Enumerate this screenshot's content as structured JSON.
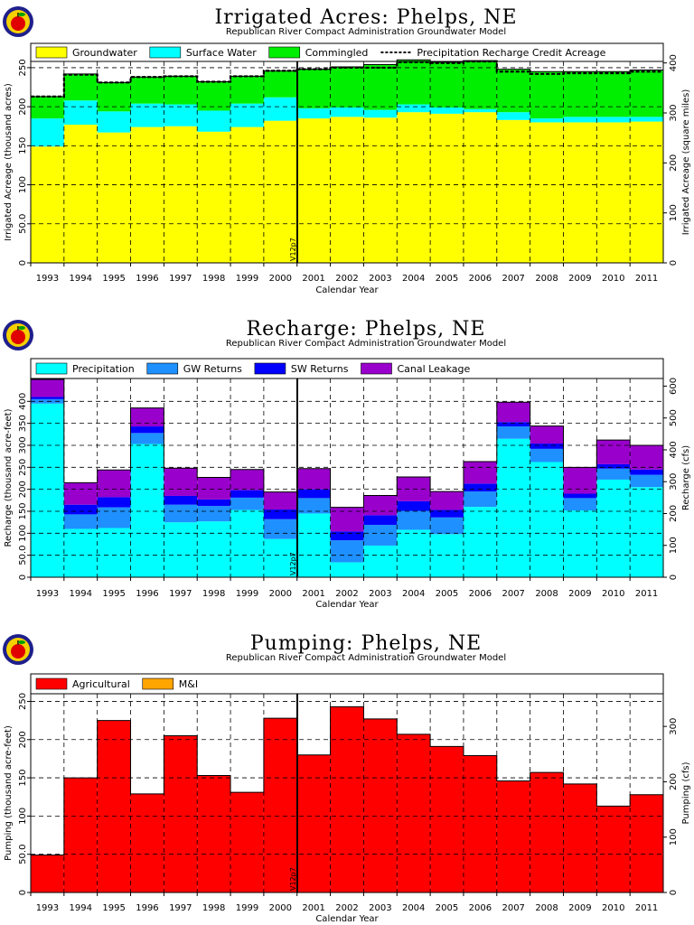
{
  "years": [
    "1993",
    "1994",
    "1995",
    "1996",
    "1997",
    "1998",
    "1999",
    "2000",
    "2001",
    "2002",
    "2003",
    "2004",
    "2005",
    "2006",
    "2007",
    "2008",
    "2009",
    "2010",
    "2011"
  ],
  "marker_label": "V12p7",
  "chart_data": [
    {
      "type": "bar",
      "stacked": true,
      "title": "Irrigated Acres: Phelps, NE",
      "subtitle": "Republican River Compact Administration Groundwater Model",
      "xlabel": "Calendar Year",
      "ylabel": "Irrigated Acreage (thousand acres)",
      "ylabel2": "Irrigated Acreage (square miles)",
      "ylim": [
        0,
        258
      ],
      "yticks": [
        0,
        50,
        100,
        150,
        200,
        250
      ],
      "yticks_labels": [
        "0",
        "50.0",
        "100",
        "150",
        "200",
        "250"
      ],
      "ylim2": [
        0,
        403
      ],
      "yticks2": [
        0,
        100,
        200,
        300,
        400
      ],
      "grid": true,
      "legend_position": "top",
      "series": [
        {
          "name": "Groundwater",
          "color": "#ffff00",
          "values": [
            149,
            177,
            167,
            174,
            175,
            168,
            174,
            182,
            185,
            187,
            186,
            193,
            191,
            193,
            183,
            180,
            180,
            180,
            181
          ]
        },
        {
          "name": "Surface Water",
          "color": "#00ffff",
          "values": [
            36,
            31,
            27,
            30,
            28,
            27,
            30,
            30,
            13,
            12,
            10,
            10,
            8,
            4,
            10,
            5,
            7,
            7,
            6
          ]
        },
        {
          "name": "Commingled",
          "color": "#00ee00",
          "values": [
            28,
            34,
            37,
            34,
            36,
            37,
            35,
            34,
            50,
            52,
            58,
            57,
            58,
            62,
            55,
            60,
            58,
            58,
            60
          ]
        }
      ],
      "line_series": {
        "name": "Precipitation Recharge Credit Acreage",
        "values": [
          213,
          241,
          231,
          238,
          239,
          232,
          239,
          246,
          248,
          250,
          250,
          257,
          256,
          258,
          245,
          242,
          243,
          243,
          245
        ]
      }
    },
    {
      "type": "bar",
      "stacked": true,
      "title": "Recharge: Phelps, NE",
      "subtitle": "Republican River Compact Administration Groundwater Model",
      "xlabel": "Calendar Year",
      "ylabel": "Recharge (thousand acre-feet)",
      "ylabel2": "Recharge (cfs)",
      "ylim": [
        0,
        452
      ],
      "yticks": [
        0,
        50,
        100,
        150,
        200,
        250,
        300,
        350,
        400
      ],
      "yticks_labels": [
        "0",
        "50.0",
        "100",
        "150",
        "200",
        "250",
        "300",
        "350",
        "400"
      ],
      "ylim2": [
        0,
        624
      ],
      "yticks2": [
        0,
        100,
        200,
        300,
        400,
        500,
        600
      ],
      "grid": true,
      "legend_position": "top",
      "series": [
        {
          "name": "Precipitation",
          "color": "#00ffff",
          "values": [
            395,
            110,
            112,
            303,
            125,
            127,
            153,
            87,
            145,
            34,
            72,
            108,
            98,
            160,
            315,
            262,
            152,
            222,
            205
          ]
        },
        {
          "name": "GW Returns",
          "color": "#1e90ff",
          "values": [
            10,
            33,
            47,
            25,
            40,
            35,
            28,
            45,
            35,
            50,
            47,
            43,
            38,
            35,
            28,
            30,
            28,
            25,
            28
          ]
        },
        {
          "name": "SW Returns",
          "color": "#0000ff",
          "values": [
            5,
            22,
            23,
            15,
            20,
            15,
            17,
            22,
            20,
            20,
            22,
            22,
            17,
            18,
            10,
            12,
            10,
            10,
            12
          ]
        },
        {
          "name": "Canal Leakage",
          "color": "#9900cc",
          "values": [
            40,
            50,
            62,
            42,
            63,
            50,
            47,
            40,
            47,
            55,
            45,
            55,
            42,
            50,
            45,
            40,
            60,
            55,
            55
          ]
        }
      ]
    },
    {
      "type": "bar",
      "stacked": true,
      "title": "Pumping: Phelps, NE",
      "subtitle": "Republican River Compact Administration Groundwater Model",
      "xlabel": "Calendar Year",
      "ylabel": "Pumping (thousand acre-feet)",
      "ylabel2": "Pumping (cfs)",
      "ylim": [
        0,
        260
      ],
      "yticks": [
        0,
        50,
        100,
        150,
        200,
        250
      ],
      "yticks_labels": [
        "0",
        "50.0",
        "100",
        "150",
        "200",
        "250"
      ],
      "ylim2": [
        0,
        359
      ],
      "yticks2": [
        0,
        100,
        200,
        300
      ],
      "grid": true,
      "legend_position": "top",
      "series": [
        {
          "name": "Agricultural",
          "color": "#ff0000",
          "values": [
            49,
            150,
            225,
            129,
            205,
            153,
            131,
            228,
            180,
            243,
            227,
            207,
            191,
            179,
            146,
            157,
            142,
            113,
            128
          ]
        },
        {
          "name": "M&I",
          "color": "#ffa500",
          "values": [
            0,
            0,
            0,
            0,
            0,
            0,
            0,
            0,
            0,
            0,
            0,
            0,
            0,
            0,
            0,
            0,
            0,
            0,
            0
          ]
        }
      ]
    }
  ]
}
